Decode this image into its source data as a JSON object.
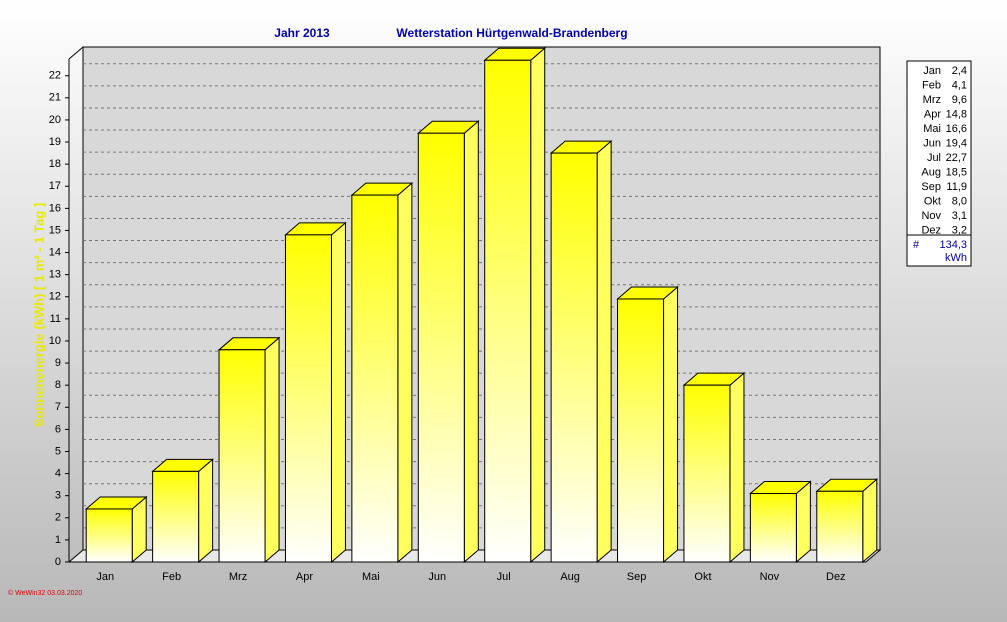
{
  "chart_data": {
    "type": "bar3d",
    "title": "Jahr  2013",
    "subtitle": "Wetterstation Hürtgenwald-Brandenberg",
    "y_label": "Sonnenenergie (kWh)   [ 1 m² - 1 Tag ]",
    "footer": "© WeWin32  03.03.2020",
    "categories": [
      "Jan",
      "Feb",
      "Mrz",
      "Apr",
      "Mai",
      "Jun",
      "Jul",
      "Aug",
      "Sep",
      "Okt",
      "Nov",
      "Dez"
    ],
    "values": [
      2.4,
      4.1,
      9.6,
      14.8,
      16.6,
      19.4,
      22.7,
      18.5,
      11.9,
      8.0,
      3.1,
      3.2
    ],
    "value_labels": [
      "2,4",
      "4,1",
      "9,6",
      "14,8",
      "16,6",
      "19,4",
      "22,7",
      "18,5",
      "11,9",
      "8,0",
      "3,1",
      "3,2"
    ],
    "total": {
      "value": 134.3,
      "label": "134,3"
    },
    "total_marker": "#",
    "unit": "kWh",
    "color": "#ffff00",
    "ylim": [
      0,
      23.3
    ],
    "yticks": [
      0,
      1,
      2,
      3,
      4,
      5,
      6,
      7,
      8,
      9,
      10,
      11,
      12,
      13,
      14,
      15,
      16,
      17,
      18,
      19,
      20,
      21,
      22
    ],
    "grid": true
  }
}
